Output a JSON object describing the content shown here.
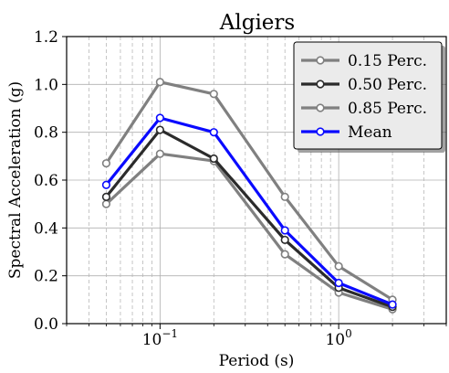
{
  "chart_data": {
    "type": "line",
    "title": "Algiers",
    "xlabel": "Period (s)",
    "ylabel": "Spectral Acceleration (g)",
    "xscale": "log",
    "xlim": [
      0.03,
      4.0
    ],
    "ylim": [
      0.0,
      1.2
    ],
    "x_tick_labels": [
      {
        "value": 0.1,
        "base": "10",
        "exp": "−1"
      },
      {
        "value": 1.0,
        "base": "10",
        "exp": "0"
      }
    ],
    "y_ticks": [
      0.0,
      0.2,
      0.4,
      0.6,
      0.8,
      1.0,
      1.2
    ],
    "y_tick_labels": [
      "0.0",
      "0.2",
      "0.4",
      "0.6",
      "0.8",
      "1.0",
      "1.2"
    ],
    "grid": "major and minor, dashed on x",
    "legend_position": "top-right",
    "x": [
      0.05,
      0.1,
      0.2,
      0.5,
      1.0,
      2.0
    ],
    "series": [
      {
        "name": "0.15 Perc.",
        "color": "#808080",
        "values": [
          0.5,
          0.71,
          0.68,
          0.29,
          0.13,
          0.06
        ]
      },
      {
        "name": "0.50 Perc.",
        "color": "#2b2b2b",
        "values": [
          0.53,
          0.81,
          0.69,
          0.35,
          0.15,
          0.07
        ]
      },
      {
        "name": "0.85 Perc.",
        "color": "#808080",
        "values": [
          0.67,
          1.01,
          0.96,
          0.53,
          0.24,
          0.1
        ]
      },
      {
        "name": "Mean",
        "color": "#0a0aff",
        "values": [
          0.58,
          0.86,
          0.8,
          0.39,
          0.17,
          0.08
        ]
      }
    ]
  }
}
